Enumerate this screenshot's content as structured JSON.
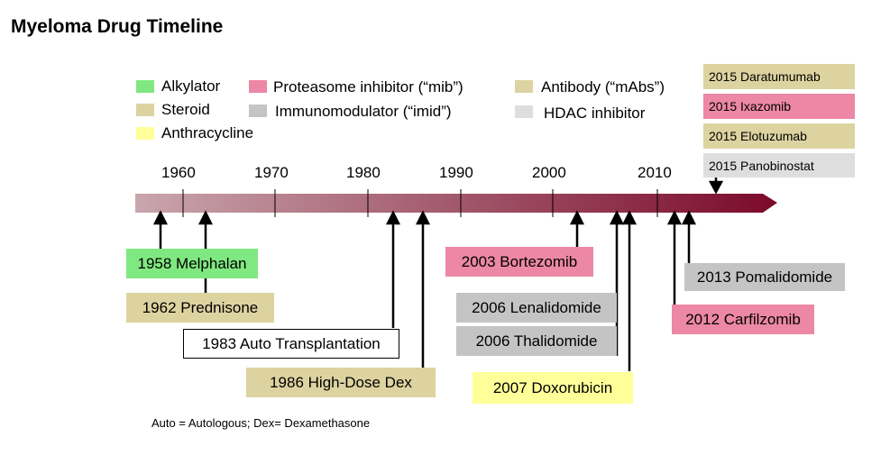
{
  "title": "Myeloma Drug Timeline",
  "legend": [
    {
      "label": "Alkylator",
      "color": "#80e880"
    },
    {
      "label": "Steroid",
      "color": "#ddd3a0"
    },
    {
      "label": "Anthracycline",
      "color": "#ffff99"
    },
    {
      "label": "Proteasome inhibitor  (“mib”)",
      "color": "#ec87a6"
    },
    {
      "label": "Immunomodulator (“imid”)",
      "color": "#c4c4c4"
    },
    {
      "label": "Antibody (“mAbs”)",
      "color": "#ddd3a0"
    },
    {
      "label": "HDAC inhibitor",
      "color": "#dedede"
    }
  ],
  "years": [
    "1960",
    "1970",
    "1980",
    "1990",
    "2000",
    "2010"
  ],
  "events": [
    {
      "label": "1958  Melphalan",
      "color": "#80e880"
    },
    {
      "label": "1962  Prednisone",
      "color": "#ddd3a0"
    },
    {
      "label": "1983 Auto Transplantation",
      "color": "#ffffff"
    },
    {
      "label": "1986 High-Dose Dex",
      "color": "#ddd3a0"
    },
    {
      "label": "2003   Bortezomib",
      "color": "#ec87a6"
    },
    {
      "label": "2006   Lenalidomide",
      "color": "#c4c4c4"
    },
    {
      "label": "2006   Thalidomide",
      "color": "#c4c4c4"
    },
    {
      "label": "2007   Doxorubicin",
      "color": "#ffff99"
    },
    {
      "label": "2012   Carfilzomib",
      "color": "#ec87a6"
    },
    {
      "label": "2013 Pomalidomide",
      "color": "#c4c4c4"
    }
  ],
  "approvals_2015": [
    {
      "label": "2015 Daratumumab",
      "color": "#ddd3a0"
    },
    {
      "label": "2015 Ixazomib",
      "color": "#ec87a6"
    },
    {
      "label": "2015 Elotuzumab",
      "color": "#ddd3a0"
    },
    {
      "label": "2015 Panobinostat",
      "color": "#dedede"
    }
  ],
  "footnote": "Auto =  Autologous; Dex= Dexamethasone",
  "timeline_colors": {
    "start": "#c9a6ae",
    "end": "#7b0a2a"
  }
}
